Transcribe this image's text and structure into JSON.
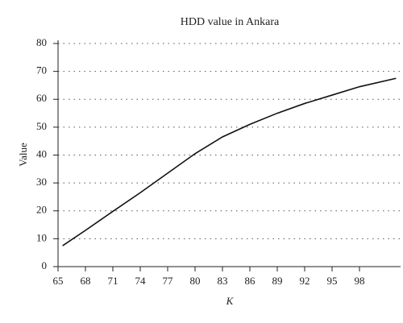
{
  "chart_data": {
    "type": "line",
    "title": "HDD value in Ankara",
    "x_label": "K",
    "y_label": "Value",
    "x": [
      65.5,
      68,
      71,
      74,
      77,
      80,
      83,
      86,
      89,
      92,
      95,
      98,
      102
    ],
    "series": [
      {
        "name": "HDD",
        "color": "#111111",
        "values": [
          7.5,
          13,
          19.8,
          26.5,
          33.5,
          40.5,
          46.5,
          51,
          55,
          58.5,
          61.5,
          64.5,
          67.5
        ]
      }
    ],
    "xlim": [
      65,
      102.5
    ],
    "xticks": [
      65,
      68,
      71,
      74,
      77,
      80,
      83,
      86,
      89,
      92,
      95,
      98
    ],
    "ylim": [
      0,
      80
    ],
    "yticks": [
      0,
      10,
      20,
      30,
      40,
      50,
      60,
      70,
      80
    ],
    "grid": true
  }
}
